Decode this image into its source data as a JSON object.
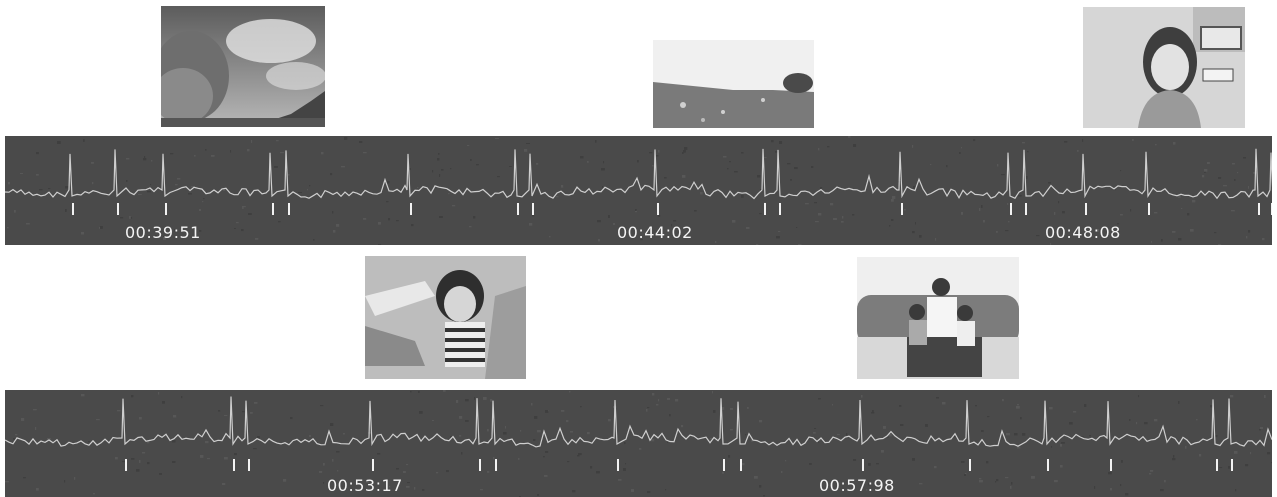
{
  "colors": {
    "strip_bg": "#4a4a4a",
    "signal": "#cfcfcf",
    "marker": "#f2f2f2",
    "timestamp_text": "#f4f4f4"
  },
  "rows": [
    {
      "id": "row1",
      "timestamps": [
        {
          "label": "00:39:51"
        },
        {
          "label": "00:44:02"
        },
        {
          "label": "00:48:08"
        }
      ],
      "thumbnails": [
        {
          "subject": "sky-and-tree-photo"
        },
        {
          "subject": "meadow-landscape-photo"
        },
        {
          "subject": "smiling-girl-photo"
        }
      ]
    },
    {
      "id": "row2",
      "timestamps": [
        {
          "label": "00:53:17"
        },
        {
          "label": "00:57:98"
        }
      ],
      "thumbnails": [
        {
          "subject": "child-on-lounge-chair-photo"
        },
        {
          "subject": "family-on-sofa-photo"
        }
      ]
    }
  ]
}
